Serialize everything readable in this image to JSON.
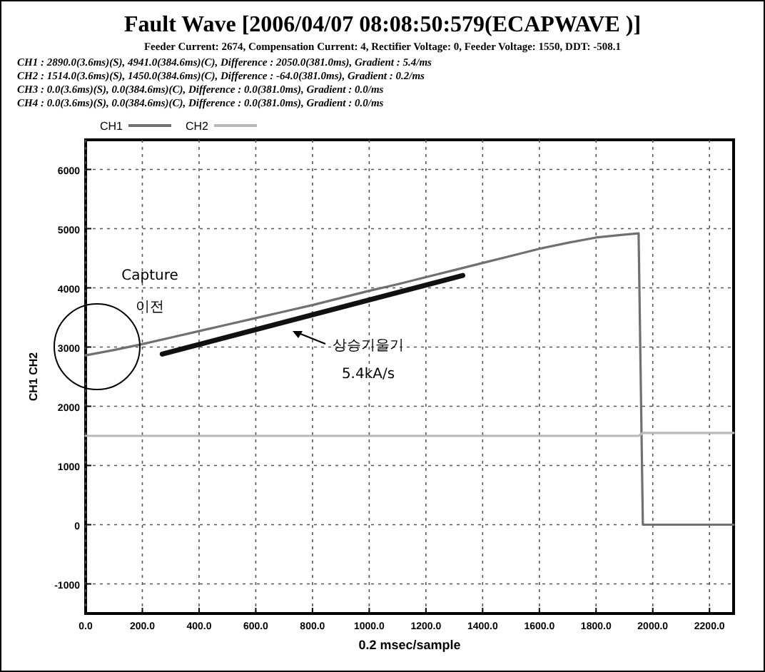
{
  "chart_data": {
    "type": "line",
    "title": "Fault Wave [2006/04/07 08:08:50:579(ECAPWAVE )]",
    "subtitle": "Feeder Current: 2674, Compensation Current: 4, Rectifier Voltage: 0, Feeder Voltage: 1550, DDT: -508.1",
    "xlabel": "0.2 msec/sample",
    "ylabel": "CH1 CH2",
    "annotations": [
      "CH1 : 2890.0(3.6ms)(S), 4941.0(384.6ms)(C), Difference : 2050.0(381.0ms), Gradient : 5.4/ms",
      "CH2 : 1514.0(3.6ms)(S), 1450.0(384.6ms)(C), Difference : -64.0(381.0ms), Gradient : 0.2/ms",
      "CH3 : 0.0(3.6ms)(S), 0.0(384.6ms)(C), Difference : 0.0(381.0ms), Gradient : 0.0/ms",
      "CH4 : 0.0(3.6ms)(S), 0.0(384.6ms)(C), Difference : 0.0(381.0ms), Gradient : 0.0/ms",
      "Capture",
      "이전",
      "상승기울기",
      "5.4kA/s"
    ],
    "series": [
      {
        "name": "CH1",
        "color": "#707070",
        "x": [
          0,
          100,
          200,
          300,
          400,
          500,
          600,
          700,
          800,
          900,
          1000,
          1100,
          1200,
          1300,
          1400,
          1500,
          1600,
          1700,
          1800,
          1900,
          1950,
          1965,
          2000,
          2100,
          2200,
          2285
        ],
        "values": [
          2860,
          2950,
          3050,
          3160,
          3270,
          3380,
          3490,
          3600,
          3710,
          3830,
          3950,
          4060,
          4180,
          4300,
          4420,
          4540,
          4660,
          4760,
          4850,
          4900,
          4920,
          0,
          0,
          0,
          0,
          0
        ]
      },
      {
        "name": "CH2",
        "color": "#b8b8b8",
        "x": [
          0,
          200,
          400,
          600,
          800,
          1000,
          1200,
          1400,
          1600,
          1800,
          1950,
          1965,
          2100,
          2285
        ],
        "values": [
          1500,
          1500,
          1500,
          1500,
          1500,
          1500,
          1500,
          1500,
          1500,
          1500,
          1500,
          1550,
          1550,
          1550
        ]
      },
      {
        "type": "line",
        "color": "#111111",
        "x": [
          270,
          1330
        ],
        "values": [
          2880,
          4210
        ]
      }
    ],
    "xlim": [
      0,
      2285
    ],
    "ylim": [
      -1500,
      6500
    ],
    "xticks": [
      {
        "value": 0,
        "label": "0.0"
      },
      {
        "value": 200,
        "label": "200.0"
      },
      {
        "value": 400,
        "label": "400.0"
      },
      {
        "value": 600,
        "label": "600.0"
      },
      {
        "value": 800,
        "label": "800.0"
      },
      {
        "value": 1000,
        "label": "1000.0"
      },
      {
        "value": 1200,
        "label": "1200.0"
      },
      {
        "value": 1400,
        "label": "1400.0"
      },
      {
        "value": 1600,
        "label": "1600.0"
      },
      {
        "value": 1800,
        "label": "1800.0"
      },
      {
        "value": 2000,
        "label": "2000.0"
      },
      {
        "value": 2200,
        "label": "2200.0"
      }
    ],
    "yticks": [
      -1000,
      0,
      1000,
      2000,
      3000,
      4000,
      5000,
      6000
    ],
    "grid": true,
    "legend": "top left",
    "marker": "none",
    "line_style": "solid"
  }
}
